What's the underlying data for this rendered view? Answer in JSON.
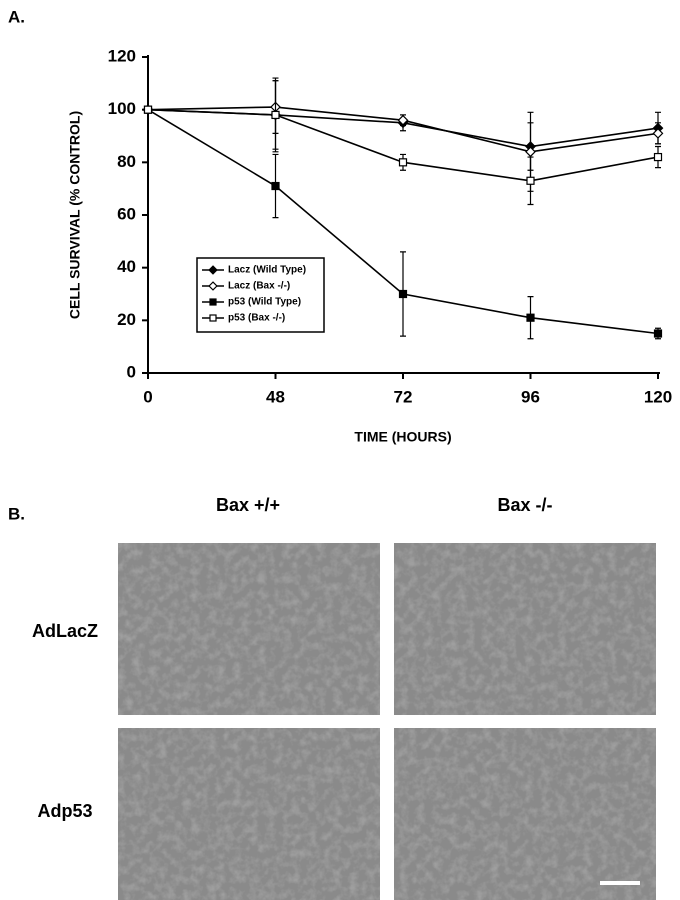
{
  "panel_a_label": "A.",
  "chart_data": {
    "type": "line",
    "y_label": "CELL SURVIVAL (% CONTROL)",
    "x_label": "TIME (HOURS)",
    "categories": [
      "0",
      "48",
      "72",
      "96",
      "120"
    ],
    "ylim": [
      0,
      120
    ],
    "yticks": [
      0,
      20,
      40,
      60,
      80,
      100,
      120
    ],
    "legend": "lower-left",
    "series": [
      {
        "name": "Lacz (Wild Type)",
        "color": "#000000",
        "marker": "diamond",
        "filled": true,
        "values": [
          100,
          98,
          95,
          86,
          93
        ],
        "errors": [
          0,
          13,
          3,
          9,
          6
        ]
      },
      {
        "name": "Lacz (Bax -/-)",
        "color": "#000000",
        "marker": "diamond",
        "filled": false,
        "values": [
          100,
          101,
          96,
          84,
          91
        ],
        "errors": [
          0,
          10,
          2,
          15,
          4
        ]
      },
      {
        "name": "p53 (Wild Type)",
        "color": "#000000",
        "marker": "square",
        "filled": true,
        "values": [
          100,
          71,
          30,
          21,
          15
        ],
        "errors": [
          0,
          12,
          16,
          8,
          2
        ]
      },
      {
        "name": "p53 (Bax -/-)",
        "color": "#000000",
        "marker": "square",
        "filled": false,
        "values": [
          100,
          98,
          80,
          73,
          82
        ],
        "errors": [
          0,
          14,
          3,
          9,
          4
        ]
      }
    ]
  },
  "panel_b": {
    "label": "B.",
    "columns": [
      "Bax +/+",
      "Bax -/-"
    ],
    "rows": [
      "AdLacZ",
      "Adp53"
    ]
  }
}
